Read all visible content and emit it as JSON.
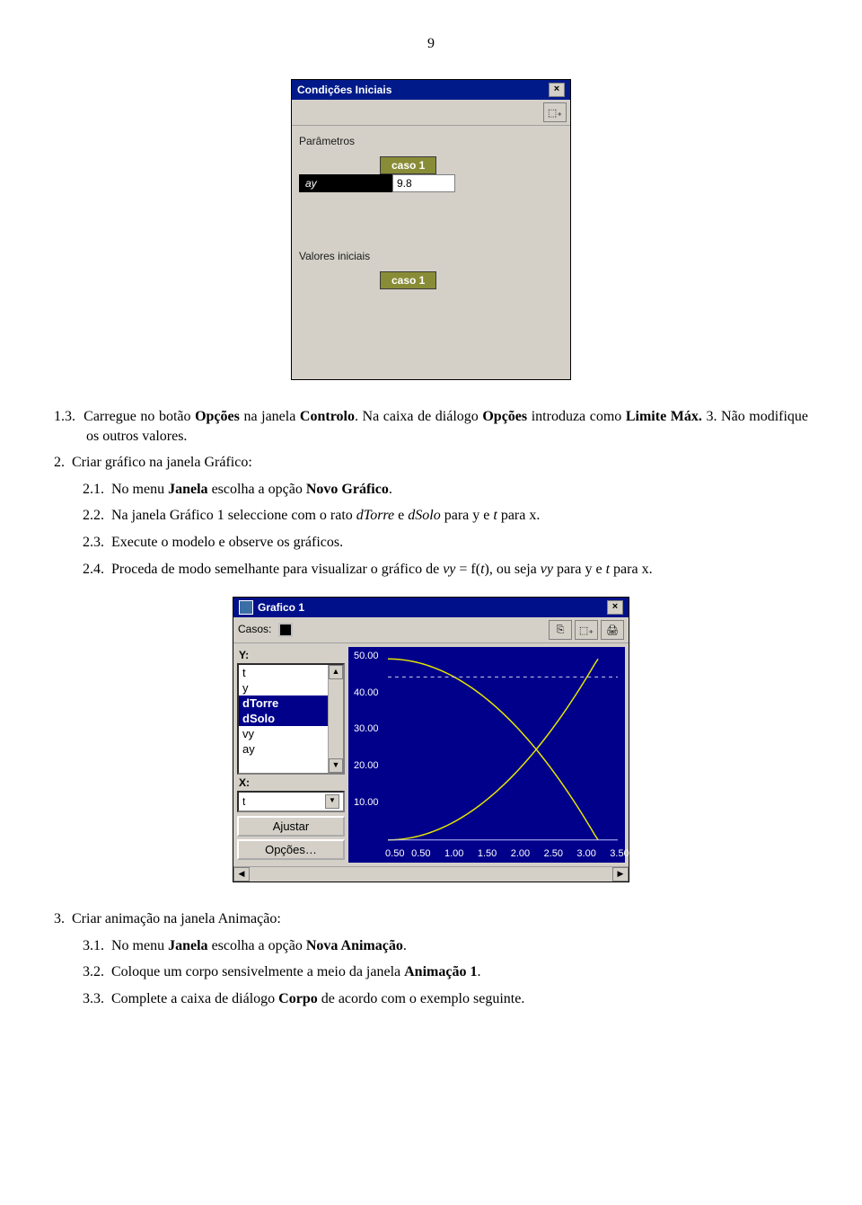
{
  "page_number": "9",
  "win1": {
    "title": "Condições Iniciais",
    "section1": "Parâmetros",
    "caso_label": "caso 1",
    "param_name": "ay",
    "param_value": "9.8",
    "section2": "Valores iniciais"
  },
  "text": {
    "p13_num": "1.3.",
    "p13": "Carregue no botão Opções na janela Controlo. Na caixa de diálogo Opções introduza como Limite Máx. 3. Não modifique os outros valores.",
    "p2_num": "2.",
    "p2": "Criar gráfico na janela Gráfico:",
    "p21_num": "2.1.",
    "p21": "No menu Janela escolha a opção Novo Gráfico.",
    "p22_num": "2.2.",
    "p22a": "Na janela Gráfico 1 seleccione com o rato ",
    "p22b": " e ",
    "p22c": " para y e ",
    "p22d": " para x.",
    "i_dTorre": "dTorre",
    "i_dSolo": "dSolo",
    "i_t": "t",
    "p23_num": "2.3.",
    "p23": "Execute o modelo e observe os gráficos.",
    "p24_num": "2.4.",
    "p24a": "Proceda de modo semelhante para visualizar o gráfico de ",
    "p24b": " = f(",
    "p24c": "), ou seja ",
    "p24d": " para y e ",
    "p24e": " para x.",
    "i_vy": "vy",
    "p3_num": "3.",
    "p3": "Criar animação na janela Animação:",
    "p31_num": "3.1.",
    "p31": "No menu Janela escolha a opção Nova Animação.",
    "p32_num": "3.2.",
    "p32": "Coloque um corpo sensivelmente a meio da janela Animação 1.",
    "p33_num": "3.3.",
    "p33": "Complete a caixa de diálogo Corpo de acordo com o exemplo seguinte."
  },
  "win2": {
    "title": "Grafico 1",
    "casos": "Casos:",
    "y_label": "Y:",
    "x_label": "X:",
    "y_items": [
      "t",
      "y",
      "dTorre",
      "dSolo",
      "vy",
      "ay"
    ],
    "y_selected": [
      2,
      3
    ],
    "x_value": "t",
    "btn_ajustar": "Ajustar",
    "btn_opcoes": "Opções…",
    "y_ticks": [
      "50.00",
      "40.00",
      "30.00",
      "20.00",
      "10.00"
    ],
    "x_ticks": [
      "0.50",
      "0.50",
      "1.00",
      "1.50",
      "2.00",
      "2.50",
      "3.00",
      "3.50"
    ],
    "curve_color": "#e6e600",
    "dash_color": "#d0d0f0",
    "bg": "#00008a"
  }
}
